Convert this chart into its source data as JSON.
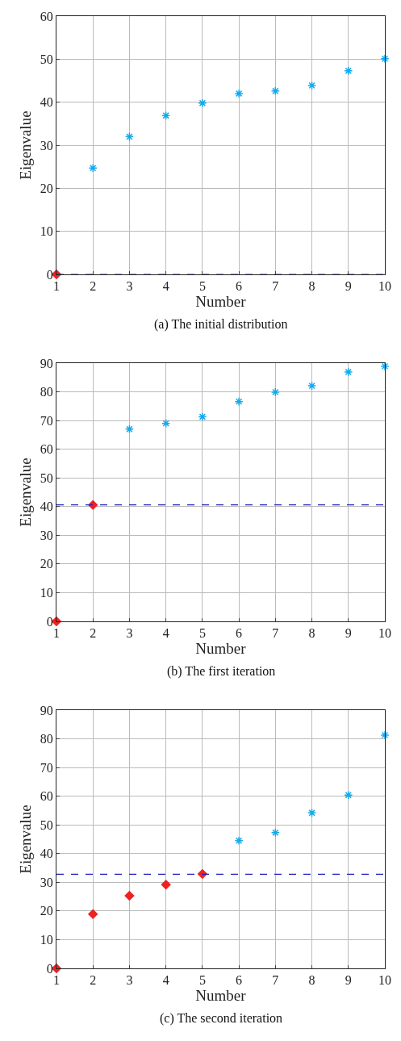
{
  "chart_data": [
    {
      "type": "scatter",
      "title": "(a) The initial distribution",
      "xlabel": "Number",
      "ylabel": "Eigenvalue",
      "xlim": [
        1,
        10
      ],
      "xticks": [
        1,
        2,
        3,
        4,
        5,
        6,
        7,
        8,
        9,
        10
      ],
      "ylim": [
        0,
        60
      ],
      "yticks": [
        0,
        10,
        20,
        30,
        40,
        50,
        60
      ],
      "grid": true,
      "series": [
        {
          "color": "#ee2222",
          "marker": "diamond",
          "x": [
            1
          ],
          "values": [
            0
          ]
        },
        {
          "color": "#11aaee",
          "marker": "cross",
          "x": [
            2,
            3,
            4,
            5,
            6,
            7,
            8,
            9,
            10
          ],
          "values": [
            24.7,
            32,
            36.9,
            39.8,
            42,
            42.6,
            43.9,
            47.3,
            50.1
          ]
        }
      ],
      "ref_lines": [
        {
          "axis": "y",
          "value": 0,
          "color": "#2222bb",
          "line_style": "dashed"
        }
      ]
    },
    {
      "type": "scatter",
      "title": "(b) The first iteration",
      "xlabel": "Number",
      "ylabel": "Eigenvalue",
      "xlim": [
        1,
        10
      ],
      "xticks": [
        1,
        2,
        3,
        4,
        5,
        6,
        7,
        8,
        9,
        10
      ],
      "ylim": [
        0,
        90
      ],
      "yticks": [
        0,
        10,
        20,
        30,
        40,
        50,
        60,
        70,
        80,
        90
      ],
      "grid": true,
      "series": [
        {
          "color": "#ee2222",
          "marker": "diamond",
          "x": [
            1,
            2
          ],
          "values": [
            0,
            40.6
          ]
        },
        {
          "color": "#11aaee",
          "marker": "cross",
          "x": [
            3,
            4,
            5,
            6,
            7,
            8,
            9,
            10
          ],
          "values": [
            67,
            69,
            71.3,
            76.6,
            79.9,
            82.1,
            86.9,
            88.9
          ]
        }
      ],
      "ref_lines": [
        {
          "axis": "y",
          "value": 40.6,
          "color": "#2222bb",
          "line_style": "dashed"
        }
      ]
    },
    {
      "type": "scatter",
      "title": "(c) The second iteration",
      "xlabel": "Number",
      "ylabel": "Eigenvalue",
      "xlim": [
        1,
        10
      ],
      "xticks": [
        1,
        2,
        3,
        4,
        5,
        6,
        7,
        8,
        9,
        10
      ],
      "ylim": [
        0,
        90
      ],
      "yticks": [
        0,
        10,
        20,
        30,
        40,
        50,
        60,
        70,
        80,
        90
      ],
      "grid": true,
      "series": [
        {
          "color": "#ee2222",
          "marker": "diamond",
          "x": [
            1,
            2,
            3,
            4,
            5
          ],
          "values": [
            0,
            18.9,
            25.3,
            29.2,
            32.9
          ]
        },
        {
          "color": "#11aaee",
          "marker": "cross",
          "x": [
            6,
            7,
            8,
            9,
            10
          ],
          "values": [
            44.5,
            47.3,
            54.2,
            60.4,
            81.3
          ]
        }
      ],
      "ref_lines": [
        {
          "axis": "y",
          "value": 32.8,
          "color": "#2222bb",
          "line_style": "dashed"
        }
      ]
    }
  ]
}
